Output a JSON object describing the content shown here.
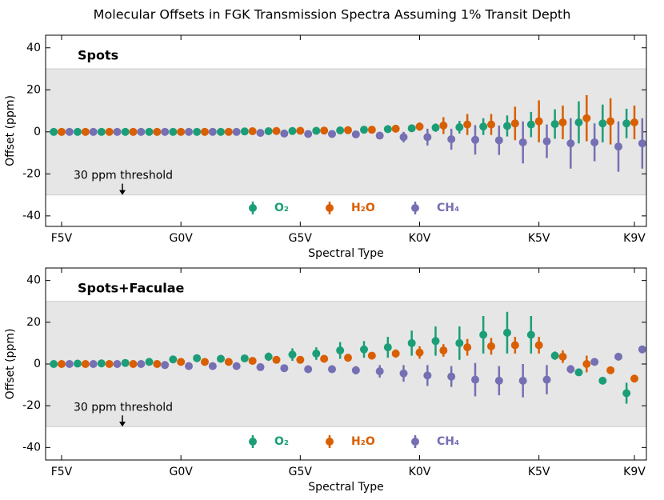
{
  "title": "Molecular Offsets in FGK Transmission Spectra Assuming 1% Transit Depth",
  "chart_data": [
    {
      "type": "errorbar",
      "panel_label": "Spots",
      "categories": [
        "F5V",
        null,
        null,
        null,
        null,
        "G0V",
        null,
        null,
        null,
        null,
        "G5V",
        null,
        null,
        null,
        null,
        "K0V",
        null,
        null,
        null,
        null,
        "K5V",
        null,
        null,
        null,
        "K9V"
      ],
      "series": [
        {
          "name": "O₂",
          "color": "#1b9e77",
          "values": [
            0,
            0,
            0,
            0,
            0,
            0,
            0,
            0,
            0.2,
            0.3,
            0.4,
            0.5,
            0.7,
            1,
            1.3,
            1.7,
            2,
            2.2,
            2.5,
            2.8,
            3.5,
            3.7,
            4.5,
            4,
            4
          ],
          "errors": [
            0.3,
            0.3,
            0.3,
            0.3,
            0.3,
            0.3,
            0.3,
            0.3,
            0.4,
            0.4,
            0.5,
            0.5,
            0.6,
            0.8,
            1,
            1.5,
            2,
            3,
            4,
            5,
            6,
            7,
            10,
            9,
            7
          ]
        },
        {
          "name": "H₂O",
          "color": "#d95f02",
          "values": [
            0,
            0,
            0,
            0,
            0,
            0,
            0,
            0,
            0.3,
            0.4,
            0.5,
            0.6,
            0.8,
            1,
            1.5,
            2.5,
            3,
            3.5,
            3.5,
            4,
            5,
            4.5,
            6.5,
            5,
            4.5
          ],
          "errors": [
            0.3,
            0.3,
            0.3,
            0.3,
            0.3,
            0.3,
            0.3,
            0.3,
            0.4,
            0.4,
            0.5,
            0.5,
            0.6,
            0.8,
            1,
            2,
            4,
            5,
            5,
            8,
            10,
            8,
            11,
            11,
            8
          ]
        },
        {
          "name": "CH₄",
          "color": "#7570b3",
          "values": [
            0,
            0,
            0,
            0,
            0,
            0,
            0,
            0,
            -0.5,
            -0.8,
            -1,
            -1,
            -1.2,
            -1.8,
            -2.5,
            -2.5,
            -3.5,
            -3.8,
            -4,
            -5,
            -4.5,
            -5.5,
            -5,
            -7,
            -5.5
          ],
          "errors": [
            0.3,
            0.3,
            0.3,
            0.3,
            0.3,
            0.3,
            0.3,
            0.3,
            0.5,
            0.6,
            0.8,
            1,
            1.2,
            1.5,
            2.5,
            4,
            5,
            7,
            7,
            10,
            8,
            12,
            9,
            12,
            12
          ]
        }
      ],
      "ylim": [
        -45,
        46
      ],
      "yticks": [
        -40,
        -20,
        0,
        20,
        40
      ],
      "ylabel": "Offset (ppm)",
      "xlabel": "Spectral Type",
      "shaded_range": [
        -30,
        30
      ],
      "annotation": "30 ppm threshold",
      "legend": "lower center"
    },
    {
      "type": "errorbar",
      "panel_label": "Spots+Faculae",
      "categories": [
        "F5V",
        null,
        null,
        null,
        null,
        "G0V",
        null,
        null,
        null,
        null,
        "G5V",
        null,
        null,
        null,
        null,
        "K0V",
        null,
        null,
        null,
        null,
        "K5V",
        null,
        null,
        null,
        "K9V"
      ],
      "series": [
        {
          "name": "O₂",
          "color": "#1b9e77",
          "values": [
            0,
            0.2,
            0.3,
            0.5,
            1,
            2.2,
            2.8,
            2.5,
            2.7,
            3.5,
            4.5,
            5,
            6.5,
            7,
            8,
            10,
            11,
            10,
            14,
            15,
            14,
            4,
            -4,
            -8,
            -14
          ],
          "errors": [
            0.3,
            0.3,
            0.4,
            0.5,
            0.6,
            1,
            1.3,
            1.2,
            1.4,
            2,
            3,
            3,
            4,
            4,
            5,
            6,
            7,
            8,
            9,
            10,
            9,
            2,
            1,
            1,
            5
          ]
        },
        {
          "name": "H₂O",
          "color": "#d95f02",
          "values": [
            0,
            0,
            0,
            0,
            0,
            1,
            1,
            1,
            1.5,
            2,
            2,
            2.5,
            3,
            4,
            5,
            5.5,
            6.5,
            8,
            8.5,
            9,
            9,
            3.5,
            0,
            -3,
            -7
          ],
          "errors": [
            0.3,
            0.3,
            0.3,
            0.3,
            0.3,
            0.4,
            0.5,
            0.5,
            0.6,
            0.8,
            1,
            1,
            1.2,
            1.5,
            2,
            3,
            3,
            4,
            4,
            4,
            4,
            3,
            4,
            1,
            1
          ]
        },
        {
          "name": "CH₄",
          "color": "#7570b3",
          "values": [
            0,
            0,
            0,
            0,
            -0.5,
            -1,
            -1,
            -1,
            -1.5,
            -2,
            -2.5,
            -2.5,
            -3,
            -3.5,
            -4.5,
            -5.5,
            -6,
            -7.5,
            -8,
            -8,
            -7.5,
            -2.5,
            1,
            3.5,
            7
          ],
          "errors": [
            0.3,
            0.3,
            0.3,
            0.3,
            0.4,
            0.5,
            0.6,
            0.6,
            0.8,
            1,
            1.5,
            1.5,
            2,
            3,
            4,
            5,
            5,
            8,
            7,
            8,
            7,
            2,
            1,
            1,
            1
          ]
        }
      ],
      "ylim": [
        -46,
        46
      ],
      "yticks": [
        -40,
        -20,
        0,
        20,
        40
      ],
      "ylabel": "Offset (ppm)",
      "xlabel": "Spectral Type",
      "shaded_range": [
        -30,
        30
      ],
      "annotation": "30 ppm threshold",
      "legend": "lower center"
    }
  ]
}
